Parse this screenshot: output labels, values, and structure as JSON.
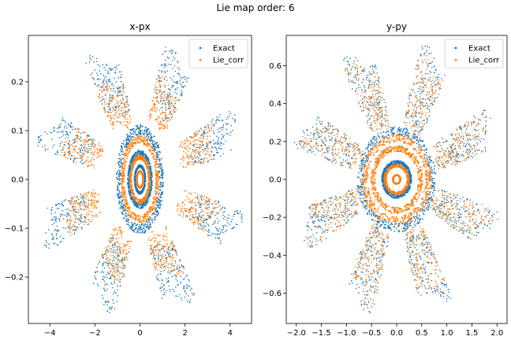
{
  "figure": {
    "suptitle": "Lie map order: 6"
  },
  "colors": {
    "exact": "#1f77b4",
    "lie_corr": "#ff7f0e"
  },
  "chart_data": [
    {
      "type": "scatter",
      "title": "x-px",
      "xlabel": "",
      "ylabel": "",
      "xlim": [
        -4.95,
        4.95
      ],
      "ylim": [
        -0.295,
        0.295
      ],
      "xticks": [
        -4,
        -2,
        0,
        2,
        4
      ],
      "xtick_labels": [
        "−4",
        "−2",
        "0",
        "2",
        "4"
      ],
      "yticks": [
        -0.2,
        -0.1,
        0.0,
        0.1,
        0.2
      ],
      "ytick_labels": [
        "−0.2",
        "−0.1",
        "0.0",
        "0.1",
        "0.2"
      ],
      "legend": {
        "position": "upper right",
        "entries": [
          "Exact",
          "Lie_corr"
        ]
      },
      "series": [
        {
          "name": "Exact",
          "rings": [
            [
              1.05,
              0.112
            ],
            [
              0.55,
              0.06
            ],
            [
              0.25,
              0.03
            ]
          ],
          "island_chain": {
            "count": 8,
            "r_in": 0.55,
            "r_out": 1.0
          }
        },
        {
          "name": "Lie_corr",
          "rings": [
            [
              0.85,
              0.09
            ],
            [
              0.45,
              0.05
            ],
            [
              0.15,
              0.018
            ]
          ],
          "island_chain": {
            "count": 8,
            "r_in": 0.45,
            "r_out": 0.78
          }
        }
      ]
    },
    {
      "type": "scatter",
      "title": "y-py",
      "xlabel": "",
      "ylabel": "",
      "xlim": [
        -2.2,
        2.2
      ],
      "ylim": [
        -0.76,
        0.76
      ],
      "xticks": [
        -2.0,
        -1.5,
        -1.0,
        -0.5,
        0.0,
        0.5,
        1.0,
        1.5,
        2.0
      ],
      "xtick_labels": [
        "−2.0",
        "−1.5",
        "−1.0",
        "−0.5",
        "0.0",
        "0.5",
        "1.0",
        "1.5",
        "2.0"
      ],
      "yticks": [
        -0.6,
        -0.4,
        -0.2,
        0.0,
        0.2,
        0.4,
        0.6
      ],
      "ytick_labels": [
        "−0.6",
        "−0.4",
        "−0.2",
        "0.0",
        "0.2",
        "0.4",
        "0.6"
      ],
      "legend": {
        "position": "upper right",
        "entries": [
          "Exact",
          "Lie_corr"
        ]
      },
      "series": [
        {
          "name": "Exact",
          "rings": [
            [
              0.78,
              0.28
            ],
            [
              0.3,
              0.1
            ]
          ],
          "island_chain": {
            "count": 8,
            "r_in": 0.45,
            "r_out": 1.0
          }
        },
        {
          "name": "Lie_corr",
          "rings": [
            [
              0.7,
              0.24
            ],
            [
              0.52,
              0.18
            ],
            [
              0.25,
              0.08
            ],
            [
              0.08,
              0.025
            ]
          ],
          "island_chain": {
            "count": 8,
            "r_in": 0.4,
            "r_out": 0.95
          }
        }
      ]
    }
  ]
}
